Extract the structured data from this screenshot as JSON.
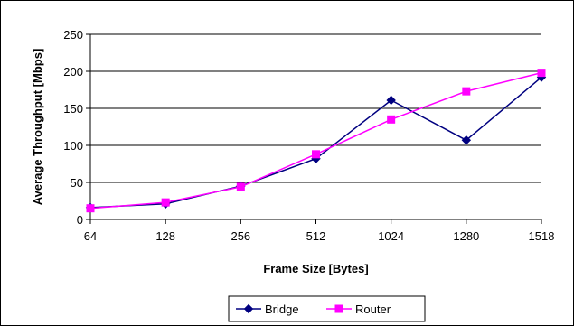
{
  "chart_data": {
    "type": "line",
    "title": "",
    "xlabel": "Frame Size [Bytes]",
    "ylabel": "Average Throughput [Mbps]",
    "categories": [
      "64",
      "128",
      "256",
      "512",
      "1024",
      "1280",
      "1518"
    ],
    "ylim": [
      0,
      250
    ],
    "yticks": [
      "0",
      "50",
      "100",
      "150",
      "200",
      "250"
    ],
    "grid": true,
    "legend_position": "bottom",
    "series": [
      {
        "name": "Bridge",
        "color": "#000080",
        "marker": "diamond",
        "values": [
          16,
          21,
          45,
          82,
          161,
          107,
          192
        ]
      },
      {
        "name": "Router",
        "color": "#ff00ff",
        "marker": "square",
        "values": [
          15,
          23,
          44,
          88,
          135,
          173,
          198
        ]
      }
    ]
  }
}
